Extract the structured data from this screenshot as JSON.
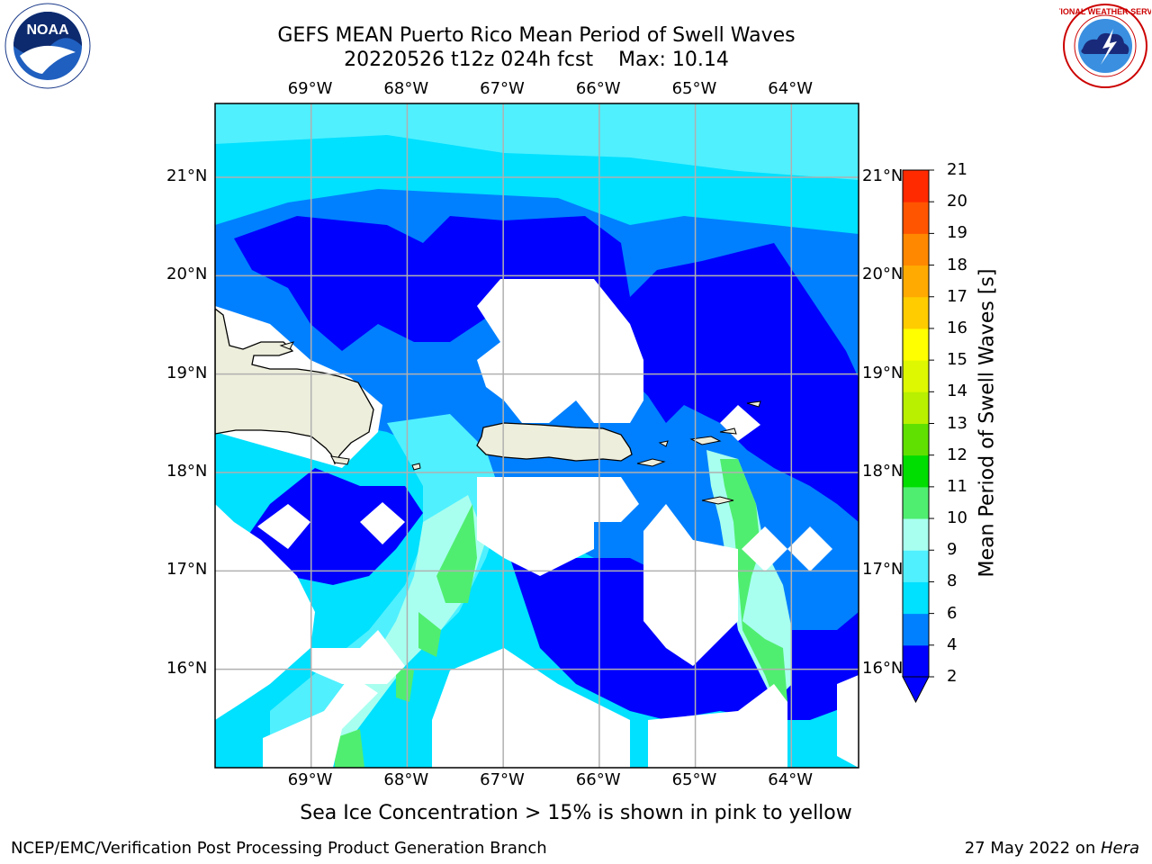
{
  "header": {
    "title_line1": "GEFS MEAN Puerto Rico Mean Period of Swell Waves",
    "title_line2": "20220526 t12z 024h fcst    Max: 10.14"
  },
  "logos": {
    "left": {
      "name": "noaa-logo",
      "text": "NOAA",
      "ring_text": "NATIONAL OCEANIC AND ATMOSPHERIC ADMINISTRATION · U.S. DEPARTMENT OF COMMERCE"
    },
    "right": {
      "name": "nws-logo",
      "ring_text": "NATIONAL WEATHER SERVICE"
    }
  },
  "map": {
    "lon_labels": [
      "69°W",
      "68°W",
      "67°W",
      "66°W",
      "65°W",
      "64°W"
    ],
    "lat_labels": [
      "21°N",
      "20°N",
      "19°N",
      "18°N",
      "17°N",
      "16°N"
    ],
    "lon_range": [
      -70.0,
      -63.3
    ],
    "lat_range": [
      15.0,
      21.75
    ],
    "gridlines": true,
    "colors": {
      "ocean_missing": "#ffffff",
      "land": "#eeeedd",
      "coastline": "#000000",
      "grid": "#b0b0b0"
    }
  },
  "colorbar": {
    "label": "Mean Period of Swell Waves [s]",
    "ticks": [
      "21",
      "20",
      "19",
      "18",
      "17",
      "16",
      "15",
      "14",
      "13",
      "12",
      "11",
      "10",
      "9",
      "8",
      "6",
      "4",
      "2"
    ],
    "bands": [
      {
        "range": "2-4",
        "color": "#0000ff"
      },
      {
        "range": "4-6",
        "color": "#0080ff"
      },
      {
        "range": "6-8",
        "color": "#00e0ff"
      },
      {
        "range": "8-9",
        "color": "#50f0ff"
      },
      {
        "range": "9-10",
        "color": "#a8fff0"
      },
      {
        "range": "10-11",
        "color": "#50ee70"
      },
      {
        "range": "11-12",
        "color": "#00dd00"
      },
      {
        "range": "12-13",
        "color": "#60e000"
      },
      {
        "range": "13-14",
        "color": "#b8f000"
      },
      {
        "range": "14-15",
        "color": "#ddf800"
      },
      {
        "range": "15-16",
        "color": "#ffff00"
      },
      {
        "range": "16-17",
        "color": "#ffcc00"
      },
      {
        "range": "17-18",
        "color": "#ffaa00"
      },
      {
        "range": "18-19",
        "color": "#ff8800"
      },
      {
        "range": "19-20",
        "color": "#ff5500"
      },
      {
        "range": "20-21",
        "color": "#ff2a00"
      },
      {
        "range": "21+",
        "color": "#ff0000"
      }
    ],
    "extend_arrow_color": "#0000ff"
  },
  "note": "Sea Ice Concentration > 15% is shown in pink to yellow",
  "footer": {
    "left": "NCEP/EMC/Verification Post Processing Product Generation Branch",
    "right_date": "27 May 2022 on ",
    "right_host": "Hera"
  }
}
